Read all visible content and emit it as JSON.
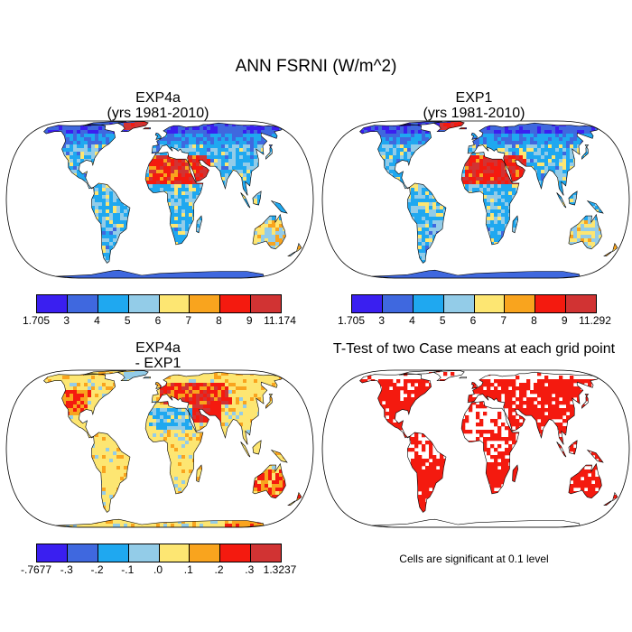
{
  "title": "ANN FSRNI (W/m^2)",
  "panels": {
    "top_left": {
      "title_line1": "EXP4a",
      "title_line2": "(yrs 1981-2010)"
    },
    "top_right": {
      "title_line1": "EXP1",
      "title_line2": "(yrs 1981-2010)"
    },
    "bottom_left": {
      "title_line1": "EXP4a",
      "title_line2": "- EXP1"
    },
    "bottom_right": {
      "title_line1": "T-Test of two Case means at each grid point"
    }
  },
  "colorbars": {
    "top_left": {
      "colors": [
        "#3a1ff0",
        "#3f68df",
        "#1fa8f0",
        "#93cce8",
        "#fde672",
        "#f9a41e",
        "#f41a0f",
        "#d13333"
      ],
      "labels": [
        "1.705",
        "3",
        "4",
        "5",
        "6",
        "7",
        "8",
        "9",
        "11.174"
      ]
    },
    "top_right": {
      "colors": [
        "#3a1ff0",
        "#3f68df",
        "#1fa8f0",
        "#93cce8",
        "#fde672",
        "#f9a41e",
        "#f41a0f",
        "#d13333"
      ],
      "labels": [
        "1.705",
        "3",
        "4",
        "5",
        "6",
        "7",
        "8",
        "9",
        "11.292"
      ]
    },
    "bottom_left": {
      "colors": [
        "#3a1ff0",
        "#3f68df",
        "#1fa8f0",
        "#93cce8",
        "#fde672",
        "#f9a41e",
        "#f41a0f",
        "#d13333"
      ],
      "labels": [
        "-.7677",
        "-.3",
        "-.2",
        "-.1",
        ".0",
        ".1",
        ".2",
        ".3",
        "1.3237"
      ]
    }
  },
  "note": "Cells are significant at 0.1 level"
}
